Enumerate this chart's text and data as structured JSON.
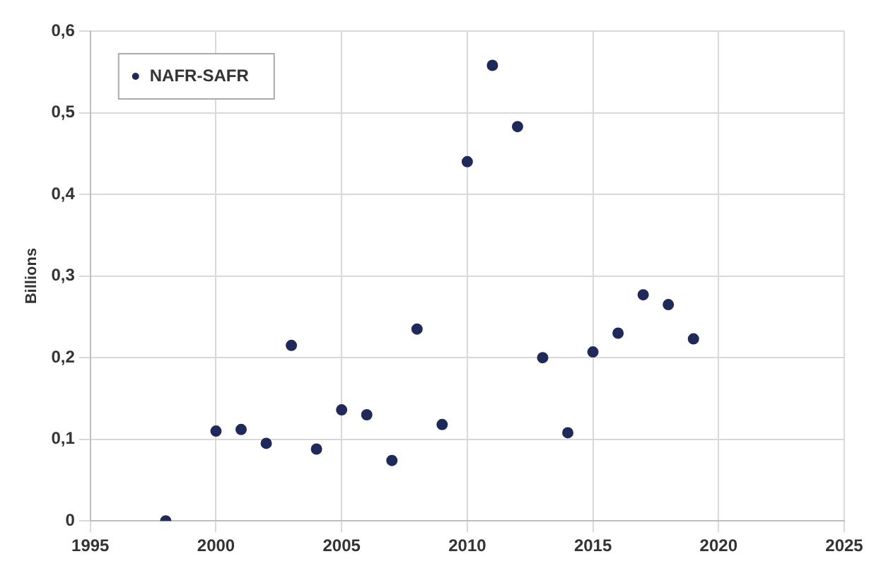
{
  "chart_data": {
    "type": "scatter",
    "ylabel": "Billions",
    "series": [
      {
        "name": "NAFR-SAFR",
        "color": "#1f2a5a",
        "x": [
          1998,
          2000,
          2001,
          2002,
          2003,
          2004,
          2005,
          2006,
          2007,
          2008,
          2009,
          2010,
          2011,
          2012,
          2013,
          2014,
          2015,
          2016,
          2017,
          2018,
          2019
        ],
        "values": [
          0,
          0.11,
          0.112,
          0.095,
          0.215,
          0.088,
          0.136,
          0.13,
          0.074,
          0.235,
          0.118,
          0.44,
          0.558,
          0.483,
          0.2,
          0.108,
          0.207,
          0.23,
          0.277,
          0.265,
          0.223
        ]
      }
    ],
    "xlim": [
      1995,
      2025
    ],
    "xticks": [
      1995,
      2000,
      2005,
      2010,
      2015,
      2020,
      2025
    ],
    "ylim": [
      0,
      0.6
    ],
    "yticks": [
      0,
      {
        "value": 0.1,
        "label": "0,1"
      },
      {
        "value": 0.2,
        "label": "0,2"
      },
      {
        "value": 0.3,
        "label": "0,3"
      },
      {
        "value": 0.4,
        "label": "0,4"
      },
      {
        "value": 0.5,
        "label": "0,5"
      },
      {
        "value": 0.6,
        "label": "0,6"
      }
    ],
    "grid": true,
    "legend": "top left",
    "marker": "circle"
  }
}
